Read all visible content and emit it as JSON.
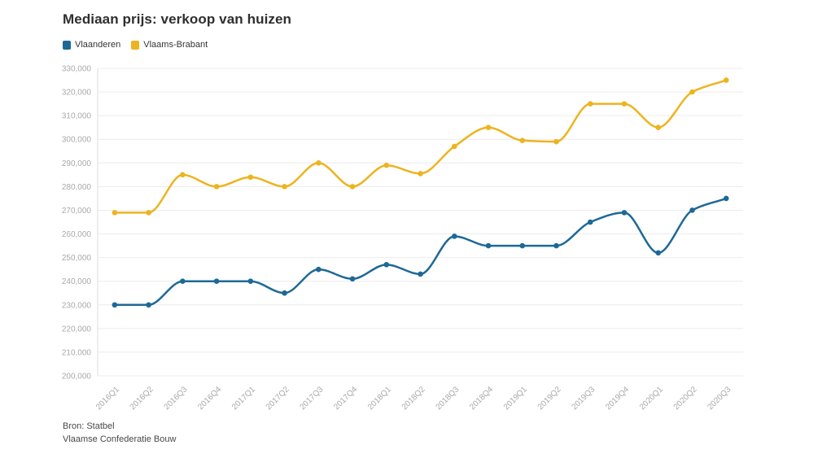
{
  "title": "Mediaan prijs: verkoop van huizen",
  "legend": {
    "items": [
      {
        "label": "Vlaanderen",
        "color": "#1d6996"
      },
      {
        "label": "Vlaams-Brabant",
        "color": "#edb41f"
      }
    ]
  },
  "footer": {
    "source_line": "Bron: Statbel",
    "org_line": "Vlaamse Confederatie Bouw"
  },
  "colors": {
    "series_blue": "#1d6996",
    "series_yellow": "#edb41f",
    "grid": "#ececec",
    "axis_line": "#dedede",
    "tick_label": "#a9a9a9",
    "title_text": "#2e2e2e",
    "footer_text": "#474747"
  },
  "chart_data": {
    "type": "line",
    "curve": "monotone",
    "grid": true,
    "legend_position": "top-left",
    "x": [
      "2016Q1",
      "2016Q2",
      "2016Q3",
      "2016Q4",
      "2017Q1",
      "2017Q2",
      "2017Q3",
      "2017Q4",
      "2018Q1",
      "2018Q2",
      "2018Q3",
      "2018Q4",
      "2019Q1",
      "2019Q2",
      "2019Q3",
      "2019Q4",
      "2020Q1",
      "2020Q2",
      "2020Q3"
    ],
    "series": [
      {
        "name": "Vlaanderen",
        "color": "#1d6996",
        "values": [
          230000,
          230000,
          240000,
          240000,
          240000,
          235000,
          245000,
          241000,
          247000,
          243000,
          259000,
          255000,
          255000,
          255000,
          265000,
          269000,
          252000,
          270000,
          275000
        ]
      },
      {
        "name": "Vlaams-Brabant",
        "color": "#edb41f",
        "values": [
          269000,
          269000,
          285000,
          280000,
          284000,
          280000,
          290000,
          280000,
          289000,
          285500,
          297000,
          305000,
          299500,
          299000,
          315000,
          315000,
          305000,
          320000,
          325000
        ]
      }
    ],
    "ylim": [
      200000,
      330000
    ],
    "ytick_step": 10000,
    "ytick_format": "thousands-comma",
    "xlabel": "",
    "ylabel": ""
  }
}
